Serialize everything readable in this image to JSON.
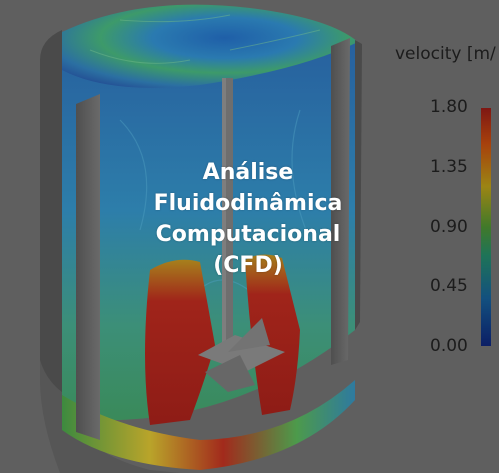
{
  "overlay": {
    "line1": "Análise",
    "line2": "Fluidodinâmica",
    "line3": "Computacional",
    "line4": "(CFD)"
  },
  "legend": {
    "title": "velocity [m/",
    "ticks": [
      "1.80",
      "1.35",
      "0.90",
      "0.45",
      "0.00"
    ]
  },
  "colors": {
    "background": "#5f5f5f",
    "high_velocity": "#b0201a",
    "mid_velocity": "#5aa83a",
    "low_velocity": "#102a8c"
  }
}
